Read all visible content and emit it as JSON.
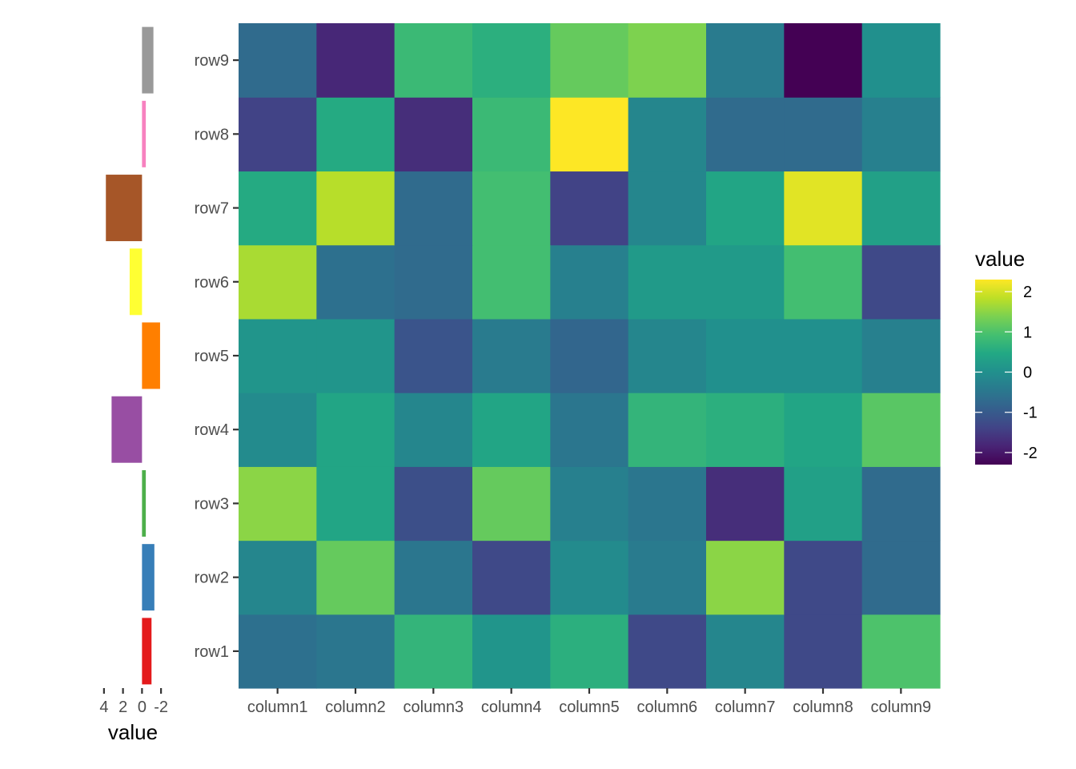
{
  "chart_data": [
    {
      "type": "heatmap",
      "title": "",
      "xlabel": "",
      "ylabel": "",
      "columns": [
        "column1",
        "column2",
        "column3",
        "column4",
        "column5",
        "column6",
        "column7",
        "column8",
        "column9"
      ],
      "rows": [
        "row1",
        "row2",
        "row3",
        "row4",
        "row5",
        "row6",
        "row7",
        "row8",
        "row9"
      ],
      "values": [
        [
          -0.6,
          -0.5,
          0.7,
          0.1,
          0.6,
          -1.3,
          -0.2,
          -1.3,
          1.0
        ],
        [
          -0.2,
          1.2,
          -0.5,
          -1.3,
          -0.1,
          -0.4,
          1.5,
          -1.3,
          -0.7
        ],
        [
          1.5,
          0.4,
          -1.2,
          1.2,
          -0.3,
          -0.5,
          -1.7,
          0.3,
          -0.7
        ],
        [
          -0.1,
          0.4,
          -0.2,
          0.4,
          -0.5,
          0.7,
          0.6,
          0.4,
          1.1
        ],
        [
          0.1,
          0.1,
          -1.1,
          -0.4,
          -0.8,
          -0.2,
          0.0,
          0.0,
          -0.3
        ],
        [
          1.7,
          -0.6,
          -0.7,
          0.9,
          -0.3,
          0.2,
          0.2,
          0.9,
          -1.3
        ],
        [
          0.5,
          1.8,
          -0.7,
          0.9,
          -1.4,
          -0.2,
          0.4,
          2.1,
          0.3
        ],
        [
          -1.4,
          0.5,
          -1.7,
          0.8,
          2.3,
          -0.2,
          -0.7,
          -0.7,
          -0.3
        ],
        [
          -0.7,
          -1.8,
          0.8,
          0.6,
          1.2,
          1.4,
          -0.4,
          -2.3,
          0.0
        ]
      ],
      "color_scale": "viridis",
      "legend": {
        "title": "value",
        "ticks": [
          "2",
          "1",
          "0",
          "-1",
          "-2"
        ],
        "tick_values": [
          2,
          1,
          0,
          -1,
          -2
        ],
        "range": [
          -2.3,
          2.3
        ],
        "placement": "right"
      }
    },
    {
      "type": "bar",
      "orientation": "horizontal",
      "x_reversed": true,
      "xlabel": "value",
      "xticks": [
        "4",
        "2",
        "0",
        "-2"
      ],
      "xtick_values": [
        4,
        2,
        0,
        -2
      ],
      "xlim": [
        5.0,
        -3.0
      ],
      "categories": [
        "row1",
        "row2",
        "row3",
        "row4",
        "row5",
        "row6",
        "row7",
        "row8",
        "row9"
      ],
      "values": [
        -1.0,
        -1.3,
        -0.4,
        3.2,
        -1.9,
        1.3,
        3.8,
        -0.4,
        -1.2
      ],
      "colors": [
        "#E41A1C",
        "#377EB8",
        "#4DAF4A",
        "#984EA3",
        "#FF7F00",
        "#FFFF33",
        "#A65628",
        "#F781BF",
        "#999999"
      ]
    }
  ]
}
